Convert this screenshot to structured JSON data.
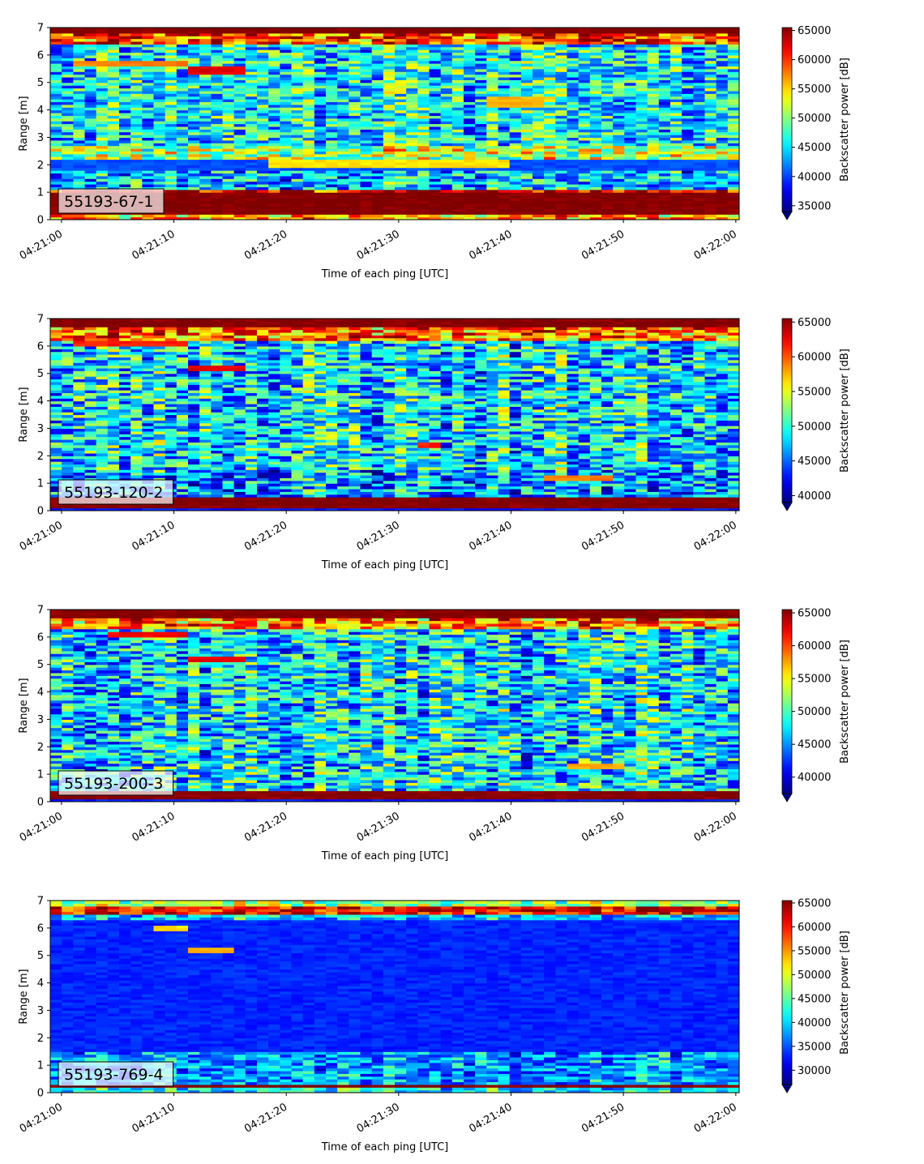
{
  "figure": {
    "panels_count": 4
  },
  "chart_data": [
    {
      "type": "heatmap",
      "panel_label": "55193-67-1",
      "xlabel": "Time of each ping [UTC]",
      "ylabel": "Range [m]",
      "x_tick_labels": [
        "04:21:00",
        "04:21:10",
        "04:21:20",
        "04:21:30",
        "04:21:40",
        "04:21:50",
        "04:22:00"
      ],
      "x_range_seconds": [
        -1,
        60.3
      ],
      "ylim": [
        0,
        7
      ],
      "y_ticks": [
        0,
        1,
        2,
        3,
        4,
        5,
        6,
        7
      ],
      "colorbar": {
        "label": "Backscatter power [dB]",
        "colormap": "jet",
        "vmin": 34000,
        "vmax": 65500,
        "ticks": [
          35000,
          40000,
          45000,
          50000,
          55000,
          60000,
          65000
        ],
        "extend": "min"
      },
      "bands": [
        {
          "y0": 0.0,
          "y1": 0.25,
          "level": 0.72
        },
        {
          "y0": 0.25,
          "y1": 1.0,
          "level": 1.0
        },
        {
          "y0": 1.0,
          "y1": 1.15,
          "level": 0.9
        },
        {
          "y0": 1.15,
          "y1": 1.8,
          "level": 0.32
        },
        {
          "y0": 1.8,
          "y1": 2.2,
          "level": 0.2
        },
        {
          "y0": 2.2,
          "y1": 2.7,
          "level": 0.55
        },
        {
          "y0": 2.7,
          "y1": 6.4,
          "level": 0.38
        },
        {
          "y0": 6.4,
          "y1": 6.8,
          "level": 0.82
        },
        {
          "y0": 6.8,
          "y1": 7.0,
          "level": 1.0
        }
      ],
      "features": [
        {
          "x0": 18,
          "x1": 40,
          "y": 2.05,
          "thickness": 0.25,
          "level": 0.65
        },
        {
          "x0": 38,
          "x1": 43,
          "y": 4.3,
          "thickness": 0.3,
          "level": 0.7
        },
        {
          "x0": 11,
          "x1": 16,
          "y": 5.4,
          "thickness": 0.3,
          "level": 0.9
        },
        {
          "x0": 1,
          "x1": 11,
          "y": 5.7,
          "thickness": 0.3,
          "level": 0.75
        }
      ],
      "noise": 0.22,
      "seed": 11
    },
    {
      "type": "heatmap",
      "panel_label": "55193-120-2",
      "xlabel": "Time of each ping [UTC]",
      "ylabel": "Range [m]",
      "x_tick_labels": [
        "04:21:00",
        "04:21:10",
        "04:21:20",
        "04:21:30",
        "04:21:40",
        "04:21:50",
        "04:22:00"
      ],
      "x_range_seconds": [
        -1,
        60.3
      ],
      "ylim": [
        0,
        7
      ],
      "y_ticks": [
        0,
        1,
        2,
        3,
        4,
        5,
        6,
        7
      ],
      "colorbar": {
        "label": "Backscatter power [dB]",
        "colormap": "jet",
        "vmin": 39000,
        "vmax": 65500,
        "ticks": [
          40000,
          45000,
          50000,
          55000,
          60000,
          65000
        ],
        "extend": "min"
      },
      "bands": [
        {
          "y0": 0.0,
          "y1": 0.1,
          "level": 0.15
        },
        {
          "y0": 0.1,
          "y1": 0.5,
          "level": 1.0
        },
        {
          "y0": 0.5,
          "y1": 1.5,
          "level": 0.3
        },
        {
          "y0": 1.5,
          "y1": 6.2,
          "level": 0.36
        },
        {
          "y0": 6.2,
          "y1": 6.7,
          "level": 0.78
        },
        {
          "y0": 6.7,
          "y1": 7.0,
          "level": 1.0
        }
      ],
      "features": [
        {
          "x0": 32,
          "x1": 34,
          "y": 2.4,
          "thickness": 0.2,
          "level": 0.85
        },
        {
          "x0": 43,
          "x1": 49,
          "y": 1.2,
          "thickness": 0.2,
          "level": 0.75
        },
        {
          "x0": 11,
          "x1": 16,
          "y": 5.2,
          "thickness": 0.2,
          "level": 0.9
        },
        {
          "x0": 1,
          "x1": 11,
          "y": 6.1,
          "thickness": 0.25,
          "level": 0.85
        }
      ],
      "noise": 0.24,
      "seed": 23
    },
    {
      "type": "heatmap",
      "panel_label": "55193-200-3",
      "xlabel": "Time of each ping [UTC]",
      "ylabel": "Range [m]",
      "x_tick_labels": [
        "04:21:00",
        "04:21:10",
        "04:21:20",
        "04:21:30",
        "04:21:40",
        "04:21:50",
        "04:22:00"
      ],
      "x_range_seconds": [
        -1,
        60.3
      ],
      "ylim": [
        0,
        7
      ],
      "y_ticks": [
        0,
        1,
        2,
        3,
        4,
        5,
        6,
        7
      ],
      "colorbar": {
        "label": "Backscatter power [dB]",
        "colormap": "jet",
        "vmin": 37500,
        "vmax": 65500,
        "ticks": [
          40000,
          45000,
          50000,
          55000,
          60000,
          65000
        ],
        "extend": "min"
      },
      "bands": [
        {
          "y0": 0.0,
          "y1": 0.1,
          "level": 0.15
        },
        {
          "y0": 0.1,
          "y1": 0.4,
          "level": 1.0
        },
        {
          "y0": 0.4,
          "y1": 6.3,
          "level": 0.36
        },
        {
          "y0": 6.3,
          "y1": 6.7,
          "level": 0.75
        },
        {
          "y0": 6.7,
          "y1": 7.0,
          "level": 1.0
        }
      ],
      "features": [
        {
          "x0": 45,
          "x1": 50,
          "y": 1.3,
          "thickness": 0.2,
          "level": 0.7
        },
        {
          "x0": 11,
          "x1": 16,
          "y": 5.2,
          "thickness": 0.2,
          "level": 0.9
        },
        {
          "x0": 4,
          "x1": 11,
          "y": 6.1,
          "thickness": 0.25,
          "level": 0.88
        }
      ],
      "noise": 0.24,
      "seed": 37
    },
    {
      "type": "heatmap",
      "panel_label": "55193-769-4",
      "xlabel": "Time of each ping [UTC]",
      "ylabel": "Range [m]",
      "x_tick_labels": [
        "04:21:00",
        "04:21:10",
        "04:21:20",
        "04:21:30",
        "04:21:40",
        "04:21:50",
        "04:22:00"
      ],
      "x_range_seconds": [
        -1,
        60.3
      ],
      "ylim": [
        0,
        7
      ],
      "y_ticks": [
        0,
        1,
        2,
        3,
        4,
        5,
        6,
        7
      ],
      "colorbar": {
        "label": "Backscatter power [dB]",
        "colormap": "jet",
        "vmin": 27000,
        "vmax": 65500,
        "ticks": [
          30000,
          35000,
          40000,
          45000,
          50000,
          55000,
          60000,
          65000
        ],
        "extend": "min"
      },
      "bands": [
        {
          "y0": 0.0,
          "y1": 0.2,
          "level": 0.4
        },
        {
          "y0": 0.2,
          "y1": 0.35,
          "level": 1.0
        },
        {
          "y0": 0.35,
          "y1": 1.5,
          "level": 0.3
        },
        {
          "y0": 1.5,
          "y1": 6.3,
          "level": 0.16
        },
        {
          "y0": 6.3,
          "y1": 6.5,
          "level": 0.35
        },
        {
          "y0": 6.5,
          "y1": 6.8,
          "level": 0.9
        },
        {
          "y0": 6.8,
          "y1": 7.0,
          "level": 0.55
        }
      ],
      "features": [
        {
          "x0": 11,
          "x1": 15,
          "y": 5.2,
          "thickness": 0.2,
          "level": 0.7
        },
        {
          "x0": 8,
          "x1": 11,
          "y": 6.0,
          "thickness": 0.2,
          "level": 0.65
        }
      ],
      "noise": 0.16,
      "seed": 53
    }
  ]
}
